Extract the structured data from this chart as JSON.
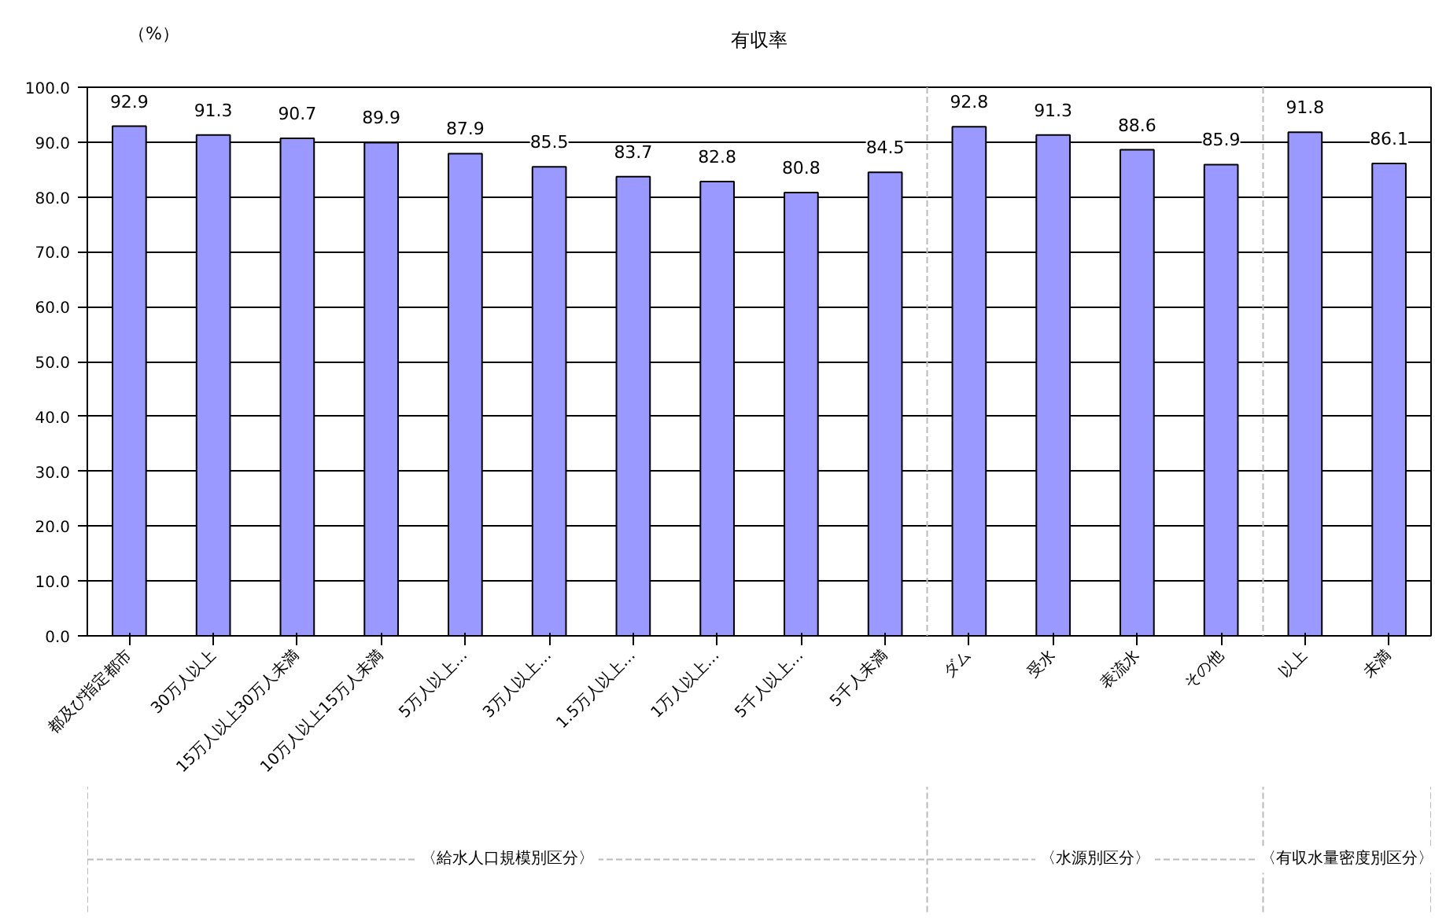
{
  "chart_data": {
    "type": "bar",
    "title": "有収率",
    "ylabel": "（%）",
    "categories": [
      "都及び指定都市",
      "30万人以上",
      "15万人以上30万人未満",
      "10万人以上15万人未満",
      "5万人以上…",
      "3万人以上…",
      "1.5万人以上…",
      "1万人以上…",
      "5千人以上…",
      "5千人未満",
      "ダム",
      "受水",
      "表流水",
      "その他",
      "以上",
      "未満"
    ],
    "values": [
      92.9,
      91.3,
      90.7,
      89.9,
      87.9,
      85.5,
      83.7,
      82.8,
      80.8,
      84.5,
      92.8,
      91.3,
      88.6,
      85.9,
      91.8,
      86.1
    ],
    "color": "#9999ff",
    "data_labels": true,
    "grid": "y",
    "ylim": [
      0,
      100
    ],
    "yticks": [
      {
        "value": 0,
        "label": "0.0"
      },
      {
        "value": 10,
        "label": "10.0"
      },
      {
        "value": 20,
        "label": "20.0"
      },
      {
        "value": 30,
        "label": "30.0"
      },
      {
        "value": 40,
        "label": "40.0"
      },
      {
        "value": 50,
        "label": "50.0"
      },
      {
        "value": 60,
        "label": "60.0"
      },
      {
        "value": 70,
        "label": "70.0"
      },
      {
        "value": 80,
        "label": "80.0"
      },
      {
        "value": 90,
        "label": "90.0"
      },
      {
        "value": 100,
        "label": "100.0"
      }
    ],
    "annotations": [
      "〈給水人口規模別区分〉",
      "〈水源別区分〉",
      "〈有収水量密度別区分〉"
    ]
  }
}
